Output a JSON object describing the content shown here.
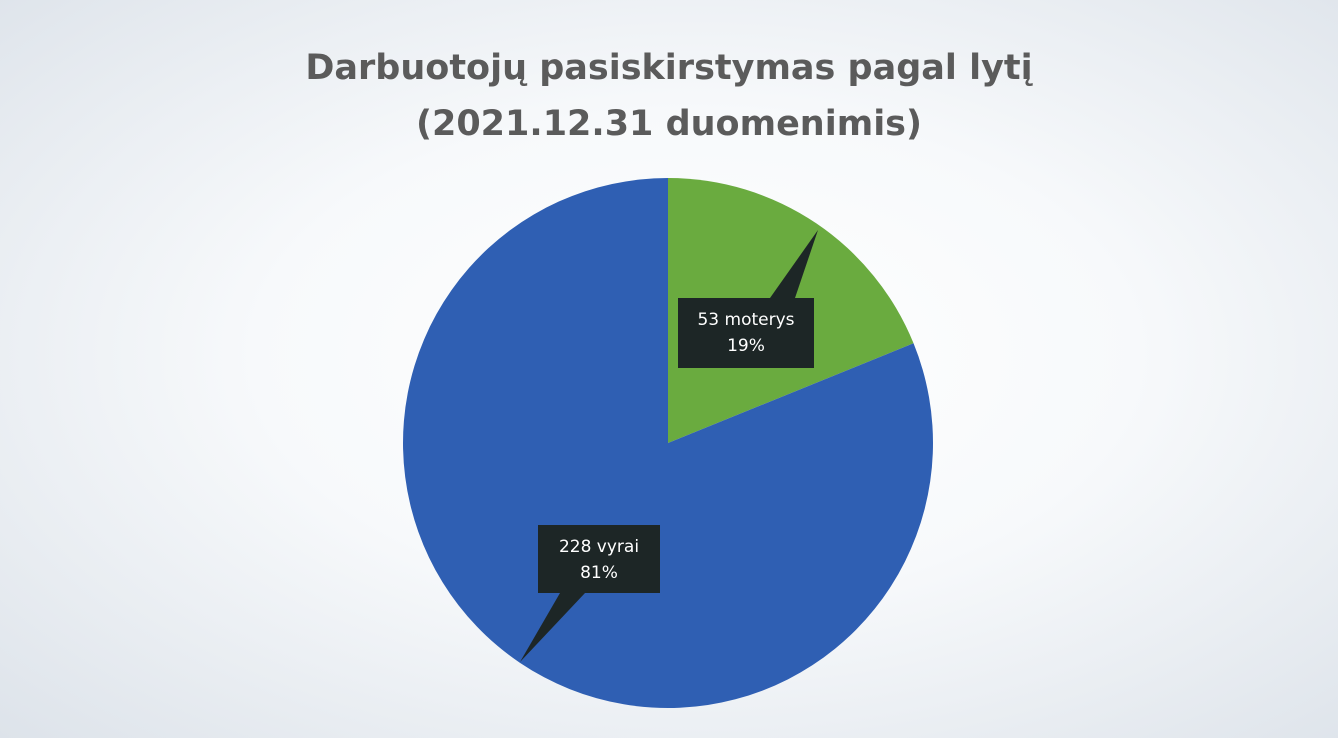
{
  "chart_data": {
    "type": "pie",
    "title": "Darbuotojų pasiskirstymas pagal lytį (2021.12.31 duomenimis)",
    "categories": [
      "moterys",
      "vyrai"
    ],
    "values": [
      53,
      228
    ],
    "percent_values": [
      19,
      81
    ],
    "percent_labels": [
      "19%",
      "81%"
    ],
    "colors": [
      "#6aab3f",
      "#2f5fb3"
    ]
  }
}
